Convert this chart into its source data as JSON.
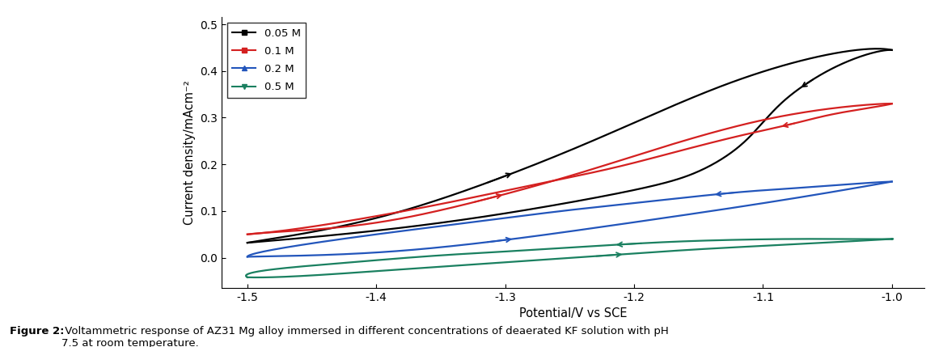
{
  "xlabel": "Potential/V vs SCE",
  "ylabel": "Current density/mAcm⁻²",
  "xlim": [
    -1.52,
    -0.975
  ],
  "ylim": [
    -0.065,
    0.515
  ],
  "xticks": [
    -1.5,
    -1.4,
    -1.3,
    -1.2,
    -1.1,
    -1.0
  ],
  "yticks": [
    0.0,
    0.1,
    0.2,
    0.3,
    0.4,
    0.5
  ],
  "legend_labels": [
    "0.05 M",
    "0.1 M",
    "0.2 M",
    "0.5 M"
  ],
  "colors": [
    "#000000",
    "#d42020",
    "#2255bb",
    "#1a8060"
  ],
  "caption_bold": "Figure 2:",
  "caption_normal": " Voltammetric response of AZ31 Mg alloy immersed in different concentrations of deaerated KF solution with pH\n7.5 at room temperature.",
  "figsize": [
    11.66,
    4.29
  ],
  "dpi": 100,
  "black_fwd": [
    [
      -1.5,
      0.032
    ],
    [
      -1.45,
      0.055
    ],
    [
      -1.38,
      0.1
    ],
    [
      -1.3,
      0.175
    ],
    [
      -1.22,
      0.265
    ],
    [
      -1.13,
      0.37
    ],
    [
      -1.05,
      0.435
    ],
    [
      -1.0,
      0.445
    ]
  ],
  "black_bwd": [
    [
      -1.0,
      0.445
    ],
    [
      -1.02,
      0.435
    ],
    [
      -1.05,
      0.4
    ],
    [
      -1.08,
      0.345
    ],
    [
      -1.1,
      0.29
    ],
    [
      -1.12,
      0.235
    ],
    [
      -1.15,
      0.185
    ],
    [
      -1.2,
      0.145
    ],
    [
      -1.3,
      0.095
    ],
    [
      -1.4,
      0.058
    ],
    [
      -1.5,
      0.032
    ]
  ],
  "red_fwd": [
    [
      -1.5,
      0.05
    ],
    [
      -1.46,
      0.058
    ],
    [
      -1.4,
      0.075
    ],
    [
      -1.33,
      0.115
    ],
    [
      -1.25,
      0.175
    ],
    [
      -1.18,
      0.235
    ],
    [
      -1.1,
      0.295
    ],
    [
      -1.03,
      0.325
    ],
    [
      -1.0,
      0.33
    ]
  ],
  "red_bwd": [
    [
      -1.0,
      0.33
    ],
    [
      -1.02,
      0.32
    ],
    [
      -1.05,
      0.305
    ],
    [
      -1.08,
      0.285
    ],
    [
      -1.12,
      0.26
    ],
    [
      -1.17,
      0.225
    ],
    [
      -1.22,
      0.19
    ],
    [
      -1.28,
      0.155
    ],
    [
      -1.35,
      0.115
    ],
    [
      -1.43,
      0.075
    ],
    [
      -1.5,
      0.05
    ]
  ],
  "blue_fwd": [
    [
      -1.5,
      0.002
    ],
    [
      -1.45,
      0.005
    ],
    [
      -1.38,
      0.015
    ],
    [
      -1.3,
      0.038
    ],
    [
      -1.22,
      0.068
    ],
    [
      -1.14,
      0.1
    ],
    [
      -1.07,
      0.13
    ],
    [
      -1.0,
      0.163
    ]
  ],
  "blue_bwd": [
    [
      -1.0,
      0.163
    ],
    [
      -1.03,
      0.158
    ],
    [
      -1.07,
      0.15
    ],
    [
      -1.12,
      0.14
    ],
    [
      -1.18,
      0.123
    ],
    [
      -1.25,
      0.102
    ],
    [
      -1.32,
      0.078
    ],
    [
      -1.4,
      0.05
    ],
    [
      -1.47,
      0.022
    ],
    [
      -1.5,
      0.002
    ]
  ],
  "teal_fwd": [
    [
      -1.5,
      -0.042
    ],
    [
      -1.45,
      -0.038
    ],
    [
      -1.38,
      -0.025
    ],
    [
      -1.3,
      -0.01
    ],
    [
      -1.22,
      0.005
    ],
    [
      -1.15,
      0.018
    ],
    [
      -1.08,
      0.028
    ],
    [
      -1.02,
      0.037
    ],
    [
      -1.0,
      0.04
    ]
  ],
  "teal_bwd": [
    [
      -1.0,
      0.04
    ],
    [
      -1.03,
      0.04
    ],
    [
      -1.08,
      0.04
    ],
    [
      -1.14,
      0.037
    ],
    [
      -1.2,
      0.03
    ],
    [
      -1.27,
      0.018
    ],
    [
      -1.35,
      0.005
    ],
    [
      -1.42,
      -0.01
    ],
    [
      -1.48,
      -0.025
    ],
    [
      -1.5,
      -0.042
    ]
  ]
}
